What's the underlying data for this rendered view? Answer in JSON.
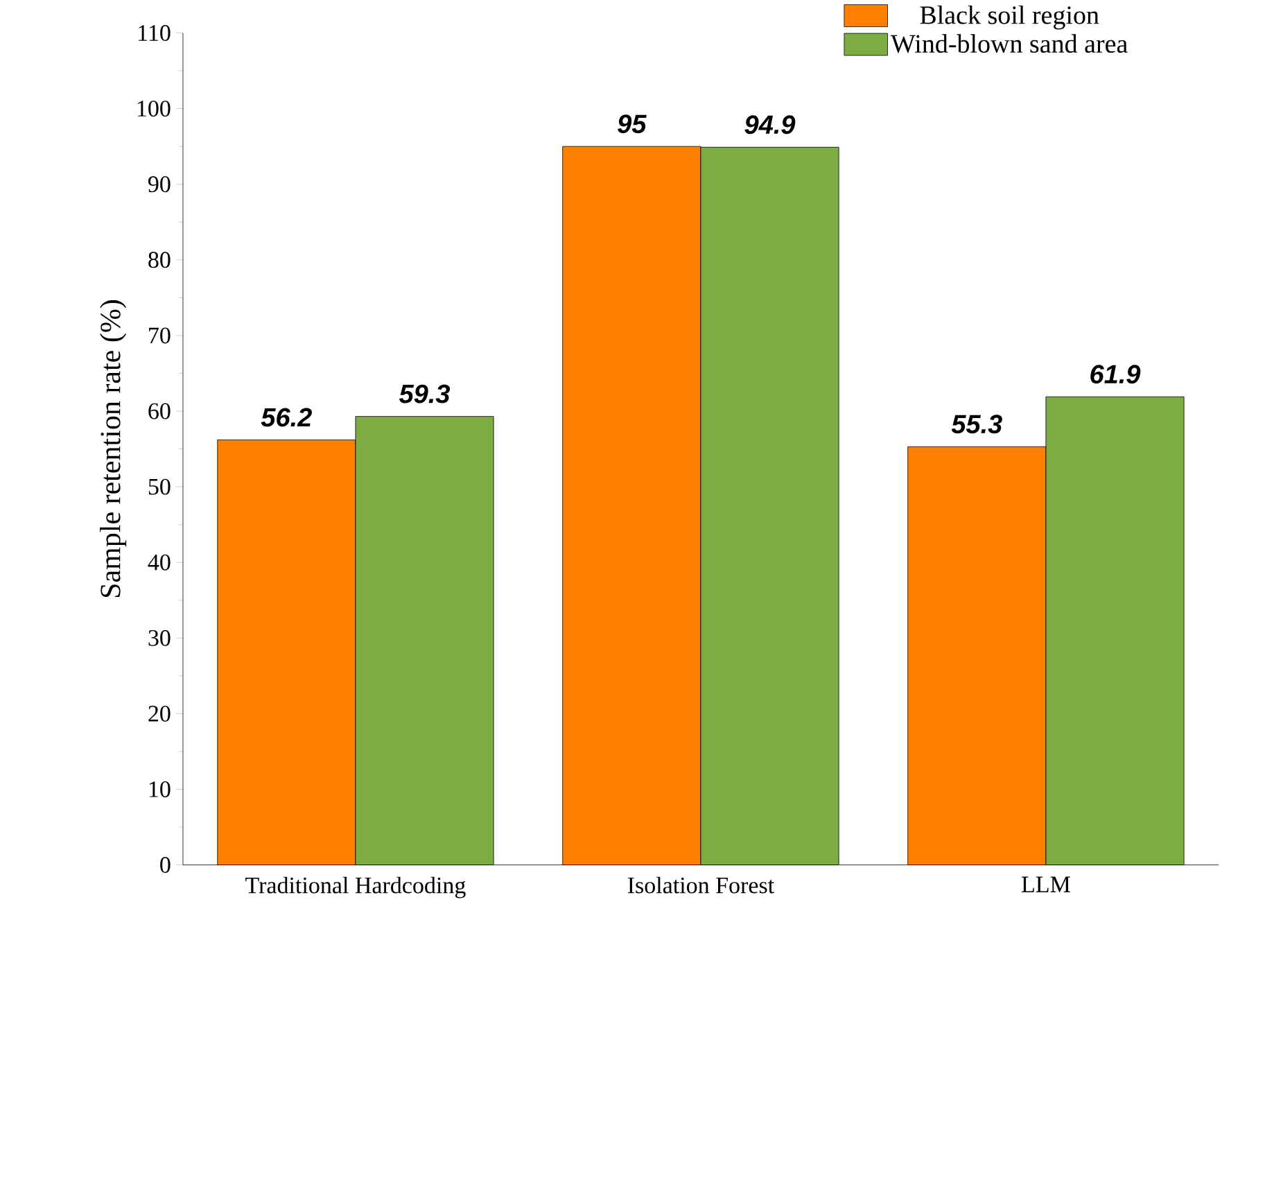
{
  "chart_data": {
    "type": "bar",
    "ylabel": "Sample retention rate (%)",
    "categories": [
      "Traditional Hardcoding",
      "Isolation Forest",
      "LLM"
    ],
    "series": [
      {
        "name": "Black soil region",
        "color": "#ff8000",
        "values": [
          56.2,
          95,
          55.3
        ]
      },
      {
        "name": "Wind-blown sand area",
        "color": "#7cac42",
        "values": [
          59.3,
          94.9,
          61.9
        ]
      }
    ],
    "ylim": [
      0,
      110
    ],
    "yticks": [
      0,
      10,
      20,
      30,
      40,
      50,
      60,
      70,
      80,
      90,
      100,
      110
    ],
    "data_labels": true,
    "legend": "top right",
    "grid": false
  }
}
